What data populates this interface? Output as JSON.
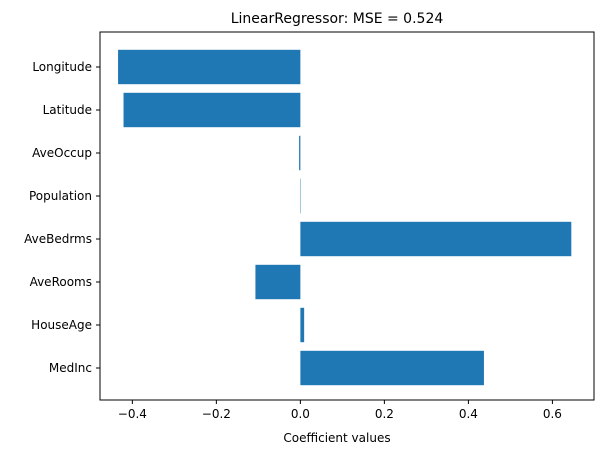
{
  "chart_data": {
    "type": "bar",
    "orientation": "horizontal",
    "title": "LinearRegressor: MSE = 0.524",
    "xlabel": "Coefficient values",
    "ylabel": "",
    "categories": [
      "MedInc",
      "HouseAge",
      "AveRooms",
      "AveBedrms",
      "Population",
      "AveOccup",
      "Latitude",
      "Longitude"
    ],
    "values": [
      0.437,
      0.009,
      -0.107,
      0.645,
      -4e-06,
      -0.003,
      -0.421,
      -0.434
    ],
    "xlim": [
      -0.477,
      0.699
    ],
    "xticks": [
      -0.4,
      -0.2,
      0.0,
      0.2,
      0.4,
      0.6
    ],
    "xtick_labels": [
      "−0.4",
      "−0.2",
      "0.0",
      "0.2",
      "0.4",
      "0.6"
    ],
    "grid": false,
    "bar_color": "#1f77b4"
  }
}
